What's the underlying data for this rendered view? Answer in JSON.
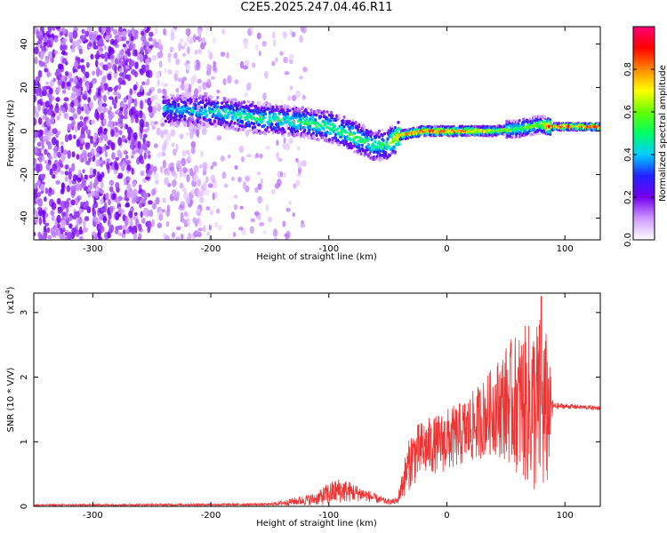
{
  "figure": {
    "title": "C2E5.2025.247.04.46.R11"
  },
  "chart_data": [
    {
      "type": "heatmap",
      "title": "C2E5.2025.247.04.46.R11",
      "xlabel": "Height of straight line (km)",
      "ylabel": "Frequency (Hz)",
      "xlim": [
        -350,
        130
      ],
      "ylim": [
        -50,
        48
      ],
      "x_ticks": [
        -300,
        -200,
        -100,
        0,
        100
      ],
      "y_ticks": [
        -40,
        -20,
        0,
        20,
        40
      ],
      "colorbar": {
        "label": "Normalized spectral amplitude",
        "range": [
          0,
          1
        ],
        "ticks": [
          0.0,
          0.2,
          0.4,
          0.6,
          0.8
        ],
        "colormap": [
          "#ffffff",
          "#cc99ff",
          "#7700ee",
          "#2222ff",
          "#00ccff",
          "#00ff66",
          "#66ff00",
          "#ffff00",
          "#ff8800",
          "#ff0000",
          "#ff0077"
        ]
      },
      "ridge": {
        "x": [
          -240,
          -200,
          -160,
          -120,
          -100,
          -80,
          -60,
          -50,
          -40,
          -20,
          0,
          20,
          40,
          60,
          70,
          80,
          88,
          130
        ],
        "freq": [
          10,
          9,
          6,
          4,
          2,
          -2,
          -7,
          -6,
          -2,
          0,
          0,
          0,
          0,
          1,
          2,
          3,
          2,
          2
        ],
        "peak_amplitude": [
          0.4,
          0.45,
          0.5,
          0.5,
          0.55,
          0.55,
          0.5,
          0.55,
          0.8,
          0.9,
          0.9,
          0.85,
          0.7,
          0.55,
          0.6,
          0.6,
          0.95,
          0.95
        ]
      },
      "grid": false,
      "legend": "colorbar-right"
    },
    {
      "type": "line",
      "xlabel": "Height of straight line (km)",
      "ylabel": "SNR (10 * V/V)",
      "y_multiplier_label": "(x10",
      "y_multiplier_exp": "4",
      "y_multiplier_close": ")",
      "xlim": [
        -350,
        130
      ],
      "ylim": [
        0,
        3.3
      ],
      "x_ticks": [
        -300,
        -200,
        -100,
        0,
        100
      ],
      "y_ticks": [
        0,
        1,
        2,
        3
      ],
      "color": "#ee3333",
      "envelope": {
        "x": [
          -350,
          -150,
          -110,
          -100,
          -90,
          -80,
          -70,
          -60,
          -50,
          -42,
          -36,
          -30,
          -20,
          -10,
          0,
          10,
          20,
          30,
          40,
          50,
          60,
          70,
          80,
          85,
          90,
          100,
          130
        ],
        "base": [
          0.02,
          0.03,
          0.12,
          0.2,
          0.25,
          0.22,
          0.18,
          0.12,
          0.07,
          0.08,
          0.45,
          0.75,
          0.9,
          0.95,
          1.02,
          1.1,
          1.2,
          1.35,
          1.5,
          1.6,
          1.6,
          1.55,
          1.5,
          1.45,
          1.55,
          1.55,
          1.52
        ],
        "noise": [
          0.01,
          0.02,
          0.1,
          0.18,
          0.2,
          0.15,
          0.1,
          0.07,
          0.04,
          0.05,
          0.3,
          0.45,
          0.45,
          0.45,
          0.5,
          0.5,
          0.55,
          0.6,
          0.7,
          0.9,
          1.1,
          1.3,
          1.5,
          1.2,
          0.06,
          0.04,
          0.03
        ]
      },
      "peak": {
        "x": 80,
        "y": 3.25
      },
      "grid": false
    }
  ]
}
